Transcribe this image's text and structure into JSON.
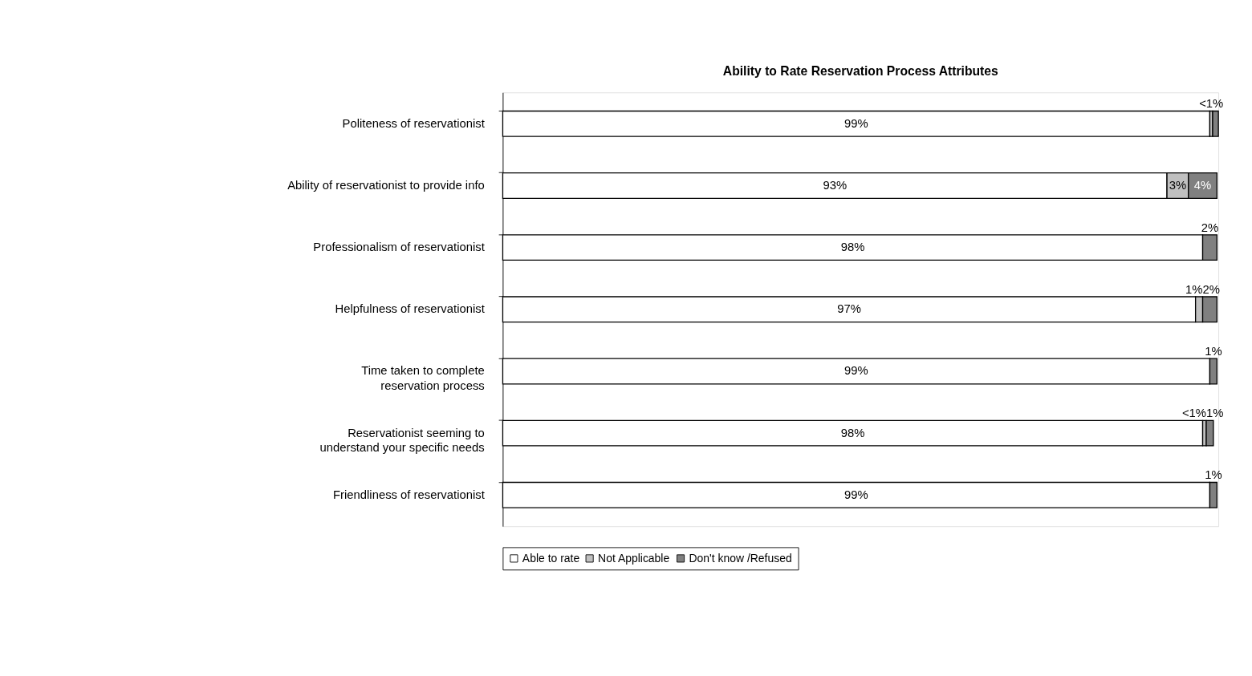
{
  "chart_data": {
    "type": "bar",
    "orientation": "horizontal",
    "stacked": true,
    "title": "Ability to Rate Reservation Process Attributes",
    "categories": [
      "Politeness of reservationist",
      "Ability of reservationist to provide info",
      "Professionalism of reservationist",
      "Helpfulness of reservationist",
      "Time taken to complete reservation process",
      "Reservationist seeming to understand your specific needs",
      "Friendliness of reservationist"
    ],
    "series": [
      {
        "name": "Able to rate",
        "color": "#ffffff",
        "values": [
          99,
          93,
          98,
          97,
          99,
          98,
          99
        ],
        "value_labels": [
          "99%",
          "93%",
          "98%",
          "97%",
          "99%",
          "98%",
          "99%"
        ]
      },
      {
        "name": "Not Applicable",
        "color": "#c0c0c0",
        "values": [
          0.4,
          3,
          null,
          1,
          null,
          0.5,
          null
        ],
        "value_labels": [
          "<1%",
          "3%",
          null,
          "1%",
          null,
          "<1%",
          null
        ]
      },
      {
        "name": "Don't know /Refused",
        "color": "#808080",
        "values": [
          0.8,
          4,
          2,
          2,
          1,
          1,
          1
        ],
        "value_labels": [
          null,
          "4%",
          "2%",
          "2%",
          "1%",
          "1%",
          "1%"
        ]
      }
    ],
    "legend": "bottom",
    "grid": false
  }
}
